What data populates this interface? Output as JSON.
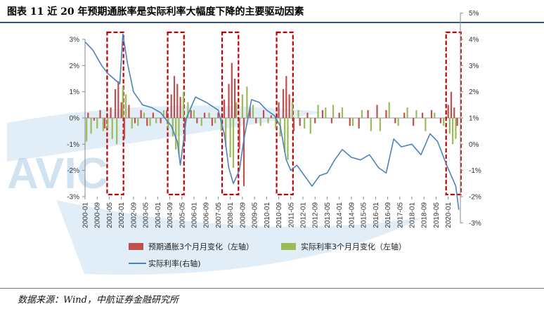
{
  "header": {
    "title": "图表 11 近 20 年预期通胀率是实际利率大幅度下降的主要驱动因素"
  },
  "footer": {
    "source": "数据来源：Wind，中航证券金融研究所"
  },
  "watermark": {
    "text": "AVIC"
  },
  "colors": {
    "inflation_bar": "#c0504d",
    "real_rate_bar": "#9bbb59",
    "real_rate_line": "#4f81bd",
    "highlight_box": "#c00000",
    "title_rule": "#2f5496"
  },
  "chart_data": {
    "type": "bar+line",
    "x_tick_labels": [
      "2000-01",
      "2000-09",
      "2001-05",
      "2002-01",
      "2002-09",
      "2003-05",
      "2004-01",
      "2004-09",
      "2005-05",
      "2006-01",
      "2006-09",
      "2007-05",
      "2008-01",
      "2008-09",
      "2009-05",
      "2010-01",
      "2010-09",
      "2011-05",
      "2012-01",
      "2012-09",
      "2013-05",
      "2014-01",
      "2014-09",
      "2015-05",
      "2016-01",
      "2016-09",
      "2017-05",
      "2018-01",
      "2018-09",
      "2019-05",
      "2020-01"
    ],
    "left_axis": {
      "ticks": [
        "3%",
        "2%",
        "1%",
        "0%",
        "-1%",
        "-2%",
        "-3%"
      ],
      "range": [
        -3,
        3
      ]
    },
    "right_axis": {
      "ticks": [
        "5%",
        "4%",
        "3%",
        "2%",
        "1%",
        "0%",
        "-1%",
        "-2%",
        "-3%"
      ],
      "range": [
        -3,
        5
      ]
    },
    "legend": [
      {
        "name": "预期通胀3个月月变化（左轴）",
        "kind": "bar",
        "color": "#c0504d"
      },
      {
        "name": "实际利率3个月月变化（左轴）",
        "kind": "bar",
        "color": "#9bbb59"
      },
      {
        "name": "实际利率(右轴)",
        "kind": "line",
        "color": "#4f81bd"
      }
    ],
    "highlight_periods": [
      {
        "start": "2001-05",
        "end": "2002-01"
      },
      {
        "start": "2004-09",
        "end": "2005-05"
      },
      {
        "start": "2007-09",
        "end": "2008-05"
      },
      {
        "start": "2010-09",
        "end": "2011-05"
      },
      {
        "start": "2020-01",
        "end": "2020-08"
      }
    ],
    "real_rate_line": {
      "axis": "right",
      "points": [
        [
          "2000-01",
          3.9
        ],
        [
          "2000-06",
          3.6
        ],
        [
          "2000-12",
          3.0
        ],
        [
          "2001-04",
          2.7
        ],
        [
          "2001-08",
          2.5
        ],
        [
          "2001-12",
          2.3
        ],
        [
          "2002-02",
          4.2
        ],
        [
          "2002-05",
          3.1
        ],
        [
          "2002-09",
          2.0
        ],
        [
          "2003-03",
          1.5
        ],
        [
          "2003-09",
          1.4
        ],
        [
          "2004-03",
          1.2
        ],
        [
          "2004-07",
          0.9
        ],
        [
          "2004-10",
          0.7
        ],
        [
          "2005-02",
          0.1
        ],
        [
          "2005-04",
          -0.8
        ],
        [
          "2005-08",
          1.0
        ],
        [
          "2006-02",
          1.8
        ],
        [
          "2006-09",
          1.6
        ],
        [
          "2007-05",
          1.3
        ],
        [
          "2007-09",
          0.4
        ],
        [
          "2007-12",
          -0.9
        ],
        [
          "2008-03",
          -1.5
        ],
        [
          "2008-07",
          -1.0
        ],
        [
          "2008-10",
          0.2
        ],
        [
          "2009-03",
          1.7
        ],
        [
          "2009-08",
          1.6
        ],
        [
          "2010-01",
          1.3
        ],
        [
          "2010-06",
          1.1
        ],
        [
          "2010-10",
          0.7
        ],
        [
          "2011-02",
          -0.6
        ],
        [
          "2011-05",
          -1.0
        ],
        [
          "2011-09",
          -0.8
        ],
        [
          "2012-02",
          -1.2
        ],
        [
          "2012-07",
          -1.6
        ],
        [
          "2012-12",
          -1.2
        ],
        [
          "2013-05",
          -1.1
        ],
        [
          "2013-10",
          -0.6
        ],
        [
          "2014-03",
          -0.2
        ],
        [
          "2014-09",
          -0.5
        ],
        [
          "2015-03",
          -0.6
        ],
        [
          "2015-09",
          -0.4
        ],
        [
          "2016-03",
          -0.9
        ],
        [
          "2016-08",
          -1.1
        ],
        [
          "2017-01",
          0.2
        ],
        [
          "2017-06",
          -0.1
        ],
        [
          "2018-01",
          0.0
        ],
        [
          "2018-07",
          -0.4
        ],
        [
          "2019-01",
          0.4
        ],
        [
          "2019-06",
          0.1
        ],
        [
          "2019-12",
          -0.8
        ],
        [
          "2020-03",
          -1.2
        ],
        [
          "2020-06",
          -1.6
        ],
        [
          "2020-08",
          -2.5
        ]
      ]
    },
    "inflation_change_bars": {
      "axis": "left",
      "points": [
        [
          "2000-03",
          0.2
        ],
        [
          "2000-07",
          -0.1
        ],
        [
          "2000-11",
          0.3
        ],
        [
          "2001-02",
          -0.4
        ],
        [
          "2001-06",
          0.4
        ],
        [
          "2001-09",
          1.1
        ],
        [
          "2001-11",
          1.4
        ],
        [
          "2002-01",
          0.6
        ],
        [
          "2002-03",
          -0.8
        ],
        [
          "2002-06",
          0.5
        ],
        [
          "2002-10",
          -0.2
        ],
        [
          "2003-02",
          0.3
        ],
        [
          "2003-06",
          -0.3
        ],
        [
          "2003-10",
          0.2
        ],
        [
          "2004-03",
          -0.2
        ],
        [
          "2004-07",
          0.3
        ],
        [
          "2004-10",
          0.9
        ],
        [
          "2004-12",
          1.6
        ],
        [
          "2005-02",
          1.3
        ],
        [
          "2005-04",
          0.8
        ],
        [
          "2005-07",
          -0.9
        ],
        [
          "2005-11",
          0.3
        ],
        [
          "2006-03",
          -0.2
        ],
        [
          "2006-08",
          0.2
        ],
        [
          "2007-01",
          -0.3
        ],
        [
          "2007-05",
          0.2
        ],
        [
          "2007-09",
          0.7
        ],
        [
          "2007-12",
          1.3
        ],
        [
          "2008-02",
          2.1
        ],
        [
          "2008-04",
          1.5
        ],
        [
          "2008-07",
          -1.2
        ],
        [
          "2008-10",
          -2.6
        ],
        [
          "2009-02",
          0.4
        ],
        [
          "2009-06",
          -0.2
        ],
        [
          "2009-11",
          0.3
        ],
        [
          "2010-04",
          0.1
        ],
        [
          "2010-09",
          0.6
        ],
        [
          "2010-12",
          1.1
        ],
        [
          "2011-02",
          1.6
        ],
        [
          "2011-04",
          0.9
        ],
        [
          "2011-07",
          -0.5
        ],
        [
          "2011-11",
          -0.3
        ],
        [
          "2012-04",
          0.2
        ],
        [
          "2012-09",
          -0.2
        ],
        [
          "2013-02",
          0.3
        ],
        [
          "2013-08",
          -0.2
        ],
        [
          "2014-01",
          0.2
        ],
        [
          "2014-08",
          -0.3
        ],
        [
          "2015-02",
          -0.4
        ],
        [
          "2015-08",
          0.3
        ],
        [
          "2016-02",
          0.5
        ],
        [
          "2016-08",
          0.3
        ],
        [
          "2017-02",
          -0.2
        ],
        [
          "2017-08",
          0.2
        ],
        [
          "2018-02",
          -0.3
        ],
        [
          "2018-08",
          0.2
        ],
        [
          "2019-02",
          0.3
        ],
        [
          "2019-08",
          -0.2
        ],
        [
          "2020-01",
          0.5
        ],
        [
          "2020-03",
          1.0
        ],
        [
          "2020-05",
          0.4
        ],
        [
          "2020-07",
          -0.3
        ]
      ]
    },
    "real_rate_change_bars": {
      "axis": "left",
      "points": [
        [
          "2000-02",
          -0.9
        ],
        [
          "2000-05",
          -0.6
        ],
        [
          "2000-09",
          -0.4
        ],
        [
          "2001-01",
          -0.5
        ],
        [
          "2001-04",
          -0.4
        ],
        [
          "2001-07",
          -0.8
        ],
        [
          "2001-10",
          -1.0
        ],
        [
          "2002-02",
          1.2
        ],
        [
          "2002-04",
          0.9
        ],
        [
          "2002-08",
          -0.4
        ],
        [
          "2002-12",
          -0.3
        ],
        [
          "2003-04",
          0.2
        ],
        [
          "2003-08",
          -0.3
        ],
        [
          "2003-12",
          -0.2
        ],
        [
          "2004-05",
          0.3
        ],
        [
          "2004-08",
          -0.4
        ],
        [
          "2004-11",
          -0.7
        ],
        [
          "2005-01",
          -1.2
        ],
        [
          "2005-03",
          -1.4
        ],
        [
          "2005-06",
          1.0
        ],
        [
          "2005-09",
          0.6
        ],
        [
          "2006-01",
          0.3
        ],
        [
          "2006-06",
          -0.3
        ],
        [
          "2006-11",
          0.2
        ],
        [
          "2007-03",
          -0.2
        ],
        [
          "2007-07",
          -0.5
        ],
        [
          "2007-10",
          -1.1
        ],
        [
          "2008-01",
          -1.5
        ],
        [
          "2008-03",
          -1.9
        ],
        [
          "2008-05",
          0.6
        ],
        [
          "2008-09",
          0.9
        ],
        [
          "2008-12",
          1.2
        ],
        [
          "2009-04",
          0.5
        ],
        [
          "2009-09",
          -0.3
        ],
        [
          "2010-02",
          -0.2
        ],
        [
          "2010-07",
          -0.4
        ],
        [
          "2010-10",
          -0.7
        ],
        [
          "2011-01",
          -1.3
        ],
        [
          "2011-03",
          -1.6
        ],
        [
          "2011-06",
          0.6
        ],
        [
          "2011-10",
          0.3
        ],
        [
          "2012-02",
          -0.4
        ],
        [
          "2012-06",
          -0.6
        ],
        [
          "2012-11",
          0.5
        ],
        [
          "2013-04",
          0.4
        ],
        [
          "2013-09",
          0.5
        ],
        [
          "2014-03",
          0.4
        ],
        [
          "2014-10",
          -0.3
        ],
        [
          "2015-04",
          0.3
        ],
        [
          "2015-10",
          -0.5
        ],
        [
          "2016-04",
          -0.5
        ],
        [
          "2016-10",
          0.6
        ],
        [
          "2017-04",
          -0.3
        ],
        [
          "2017-10",
          0.4
        ],
        [
          "2018-04",
          0.3
        ],
        [
          "2018-10",
          -0.5
        ],
        [
          "2019-04",
          0.2
        ],
        [
          "2019-10",
          -0.3
        ],
        [
          "2020-02",
          -0.6
        ],
        [
          "2020-04",
          -1.0
        ],
        [
          "2020-06",
          -0.8
        ]
      ]
    }
  }
}
